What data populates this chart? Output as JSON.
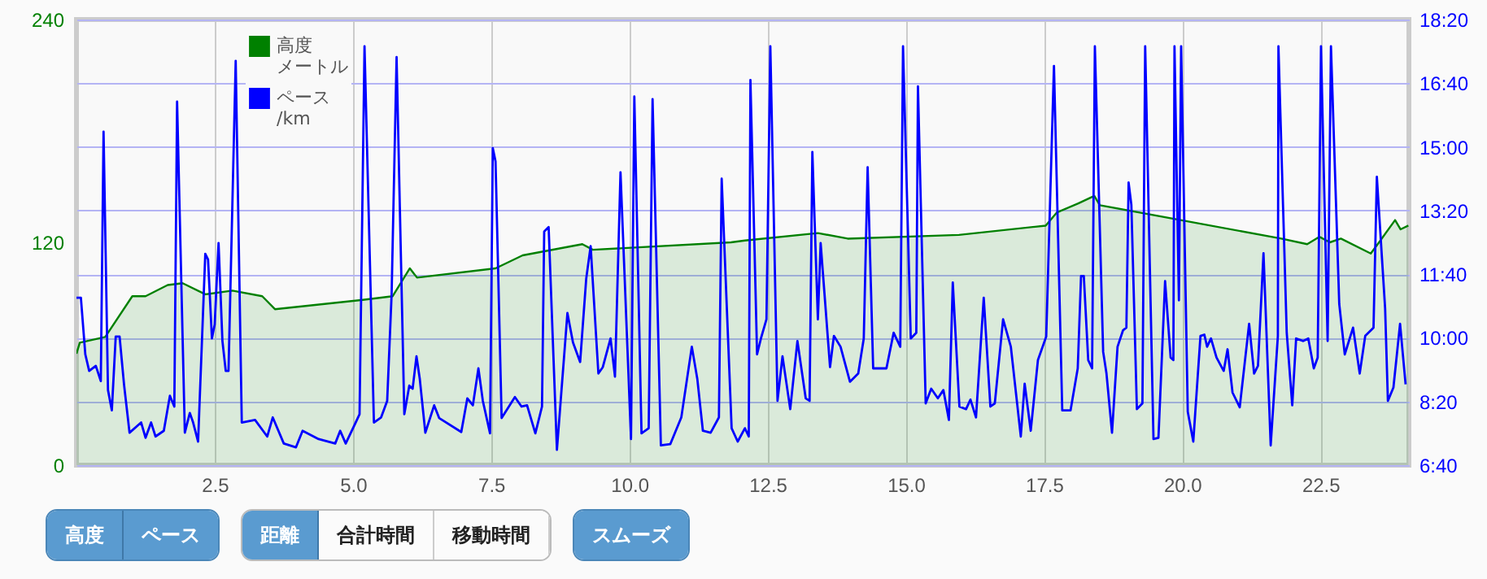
{
  "chart_data": {
    "type": "line",
    "xlim": [
      0,
      24.1
    ],
    "xticks": [
      2.5,
      {
        "value": 5,
        "label": "5.0"
      },
      7.5,
      {
        "value": 10,
        "label": "10.0"
      },
      12.5,
      {
        "value": 15,
        "label": "15.0"
      },
      17.5,
      {
        "value": 20,
        "label": "20.0"
      },
      22.5
    ],
    "ylim": [
      0,
      240
    ],
    "yticks": [
      0,
      120,
      240
    ],
    "y2lim": [
      400,
      1100
    ],
    "y2ticks": [
      {
        "value": 400,
        "label": "6:40"
      },
      {
        "value": 500,
        "label": "8:20"
      },
      {
        "value": 600,
        "label": "10:00"
      },
      {
        "value": 700,
        "label": "11:40"
      },
      {
        "value": 800,
        "label": "13:20"
      },
      {
        "value": 900,
        "label": "15:00"
      },
      {
        "value": 1000,
        "label": "16:40"
      },
      {
        "value": 1100,
        "label": "18:20"
      }
    ],
    "grid": true,
    "legend": "top left",
    "annotations": [
      "高度",
      "ペース",
      "距離",
      "合計時間",
      "移動時間",
      "スムーズ"
    ],
    "series": [
      {
        "name": "高度メートル",
        "type": "area",
        "color": "#008000",
        "x": [
          0,
          0.06,
          0.52,
          1.01,
          1.25,
          1.65,
          1.92,
          2.33,
          2.82,
          3.36,
          3.59,
          5.18,
          5.72,
          6.03,
          6.16,
          7.58,
          8.07,
          9.15,
          9.34,
          11.84,
          12.09,
          13.41,
          13.95,
          15.96,
          17.53,
          17.73,
          18.12,
          18.41,
          18.51,
          21.79,
          22.26,
          22.48,
          22.67,
          22.87,
          23.41,
          23.56,
          23.85,
          23.95,
          24.09
        ],
        "values": [
          60,
          66,
          69,
          91,
          91,
          97,
          98,
          92,
          94,
          91,
          84,
          89,
          91,
          106,
          101,
          106,
          113,
          119,
          116,
          120,
          121,
          125,
          122,
          124,
          129,
          136,
          141,
          145,
          140,
          122,
          119,
          123,
          120,
          122,
          114,
          120,
          132,
          127,
          129
        ]
      },
      {
        "name": "ペース/km",
        "type": "line",
        "axis": "y2",
        "color": "#0000ff",
        "x": [
          0,
          0.08,
          0.16,
          0.23,
          0.35,
          0.44,
          0.49,
          0.57,
          0.64,
          0.71,
          0.78,
          0.86,
          0.96,
          1.17,
          1.25,
          1.35,
          1.43,
          1.58,
          1.69,
          1.77,
          1.82,
          1.96,
          2.05,
          2.11,
          2.2,
          2.33,
          2.38,
          2.45,
          2.5,
          2.57,
          2.64,
          2.7,
          2.75,
          2.88,
          2.99,
          3.23,
          3.45,
          3.55,
          3.75,
          3.97,
          4.09,
          4.38,
          4.68,
          4.77,
          4.87,
          5.05,
          5.12,
          5.21,
          5.38,
          5.51,
          5.62,
          5.7,
          5.79,
          5.93,
          6.02,
          6.08,
          6.15,
          6.21,
          6.31,
          6.47,
          6.56,
          6.96,
          7.07,
          7.17,
          7.27,
          7.35,
          7.48,
          7.53,
          7.58,
          7.69,
          7.93,
          8.05,
          8.15,
          8.3,
          8.42,
          8.46,
          8.54,
          8.69,
          8.88,
          8.98,
          9.11,
          9.22,
          9.3,
          9.44,
          9.52,
          9.66,
          9.74,
          9.84,
          10.03,
          10.09,
          10.22,
          10.35,
          10.42,
          10.57,
          10.74,
          10.94,
          11.13,
          11.23,
          11.33,
          11.47,
          11.62,
          11.67,
          11.85,
          11.96,
          12.09,
          12.16,
          12.19,
          12.31,
          12.38,
          12.48,
          12.55,
          12.68,
          12.77,
          12.91,
          13.04,
          13.19,
          13.26,
          13.31,
          13.41,
          13.46,
          13.63,
          13.7,
          13.82,
          13.99,
          14.14,
          14.24,
          14.31,
          14.41,
          14.65,
          14.78,
          14.9,
          14.95,
          15.09,
          15.19,
          15.22,
          15.36,
          15.46,
          15.58,
          15.68,
          15.78,
          15.85,
          15.97,
          16.09,
          16.17,
          16.27,
          16.41,
          16.53,
          16.61,
          16.76,
          16.9,
          17.08,
          17.15,
          17.26,
          17.39,
          17.54,
          17.68,
          17.83,
          17.98,
          18.11,
          18.17,
          18.22,
          18.3,
          18.37,
          18.42,
          18.57,
          18.63,
          18.73,
          18.83,
          18.93,
          18.99,
          19.03,
          19.08,
          19.18,
          19.28,
          19.33,
          19.48,
          19.57,
          19.69,
          19.79,
          19.84,
          19.86,
          19.94,
          19.98,
          20.1,
          20.2,
          20.33,
          20.4,
          20.45,
          20.52,
          20.62,
          20.75,
          20.82,
          20.91,
          21.04,
          21.21,
          21.3,
          21.37,
          21.47,
          21.6,
          21.73,
          21.74,
          21.89,
          21.99,
          22.06,
          22.19,
          22.28,
          22.38,
          22.45,
          22.51,
          22.63,
          22.69,
          22.84,
          22.94,
          23.09,
          23.21,
          23.31,
          23.46,
          23.52,
          23.67,
          23.72,
          23.82,
          23.94,
          24.04
        ],
        "values": [
          663,
          663,
          574,
          548,
          556,
          532,
          924,
          518,
          486,
          602,
          602,
          527,
          451,
          467,
          443,
          467,
          445,
          454,
          509,
          492,
          971,
          451,
          482,
          467,
          437,
          732,
          723,
          599,
          621,
          749,
          595,
          548,
          548,
          1035,
          467,
          471,
          445,
          475,
          434,
          428,
          454,
          441,
          434,
          454,
          434,
          467,
          480,
          1058,
          467,
          475,
          501,
          668,
          1041,
          480,
          525,
          520,
          571,
          535,
          451,
          494,
          474,
          452,
          505,
          494,
          552,
          501,
          450,
          898,
          877,
          474,
          507,
          492,
          494,
          450,
          492,
          767,
          774,
          424,
          639,
          593,
          562,
          693,
          744,
          544,
          554,
          599,
          539,
          860,
          441,
          979,
          450,
          458,
          975,
          431,
          433,
          475,
          586,
          535,
          454,
          451,
          475,
          850,
          458,
          437,
          458,
          445,
          1005,
          574,
          599,
          629,
          1058,
          501,
          571,
          488,
          595,
          505,
          501,
          892,
          629,
          749,
          554,
          603,
          586,
          531,
          544,
          599,
          868,
          552,
          552,
          608,
          586,
          1058,
          599,
          608,
          995,
          497,
          520,
          505,
          518,
          471,
          687,
          492,
          488,
          503,
          475,
          663,
          492,
          497,
          629,
          586,
          445,
          528,
          454,
          565,
          602,
          1027,
          486,
          486,
          552,
          697,
          697,
          565,
          552,
          1058,
          578,
          544,
          451,
          586,
          612,
          616,
          844,
          809,
          488,
          497,
          1058,
          441,
          443,
          689,
          569,
          565,
          1058,
          659,
          1058,
          484,
          437,
          603,
          605,
          586,
          599,
          569,
          548,
          582,
          514,
          491,
          622,
          544,
          556,
          733,
          431,
          603,
          1058,
          608,
          494,
          599,
          595,
          599,
          552,
          569,
          1058,
          595,
          1058,
          653,
          574,
          616,
          544,
          603,
          616,
          853,
          646,
          501,
          522,
          622,
          527
        ]
      }
    ]
  }
}
